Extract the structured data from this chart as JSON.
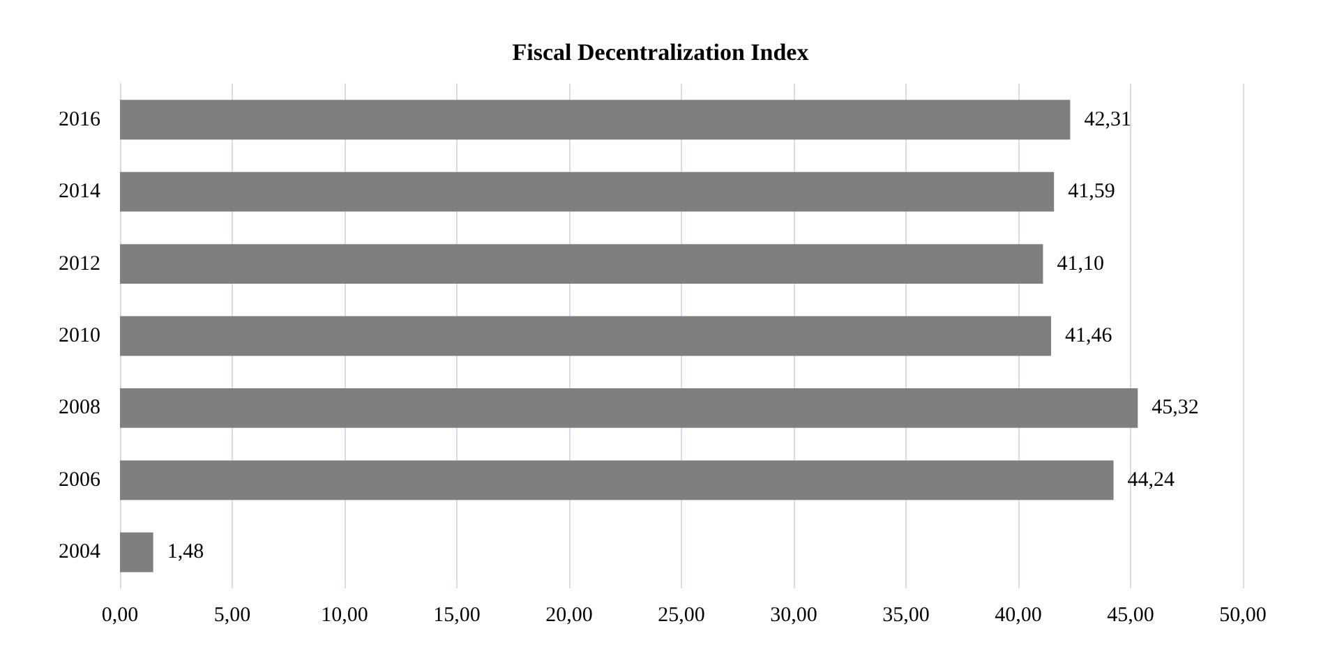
{
  "chart_data": {
    "type": "bar",
    "orientation": "horizontal",
    "title": "Fiscal Decentralization Index",
    "categories": [
      "2016",
      "2014",
      "2012",
      "2010",
      "2008",
      "2006",
      "2004"
    ],
    "values": [
      42.31,
      41.59,
      41.1,
      41.46,
      45.32,
      44.24,
      1.48
    ],
    "value_labels": [
      "42,31",
      "41,59",
      "41,10",
      "41,46",
      "45,32",
      "44,24",
      "1,48"
    ],
    "color": "#7f7f7f",
    "xlim": [
      0,
      50
    ],
    "xticks": [
      {
        "value": 0,
        "label": "0,00"
      },
      {
        "value": 5,
        "label": "5,00"
      },
      {
        "value": 10,
        "label": "10,00"
      },
      {
        "value": 15,
        "label": "15,00"
      },
      {
        "value": 20,
        "label": "20,00"
      },
      {
        "value": 25,
        "label": "25,00"
      },
      {
        "value": 30,
        "label": "30,00"
      },
      {
        "value": 35,
        "label": "35,00"
      },
      {
        "value": 40,
        "label": "40,00"
      },
      {
        "value": 45,
        "label": "45,00"
      },
      {
        "value": 50,
        "label": "50,00"
      }
    ],
    "grid": "x"
  }
}
